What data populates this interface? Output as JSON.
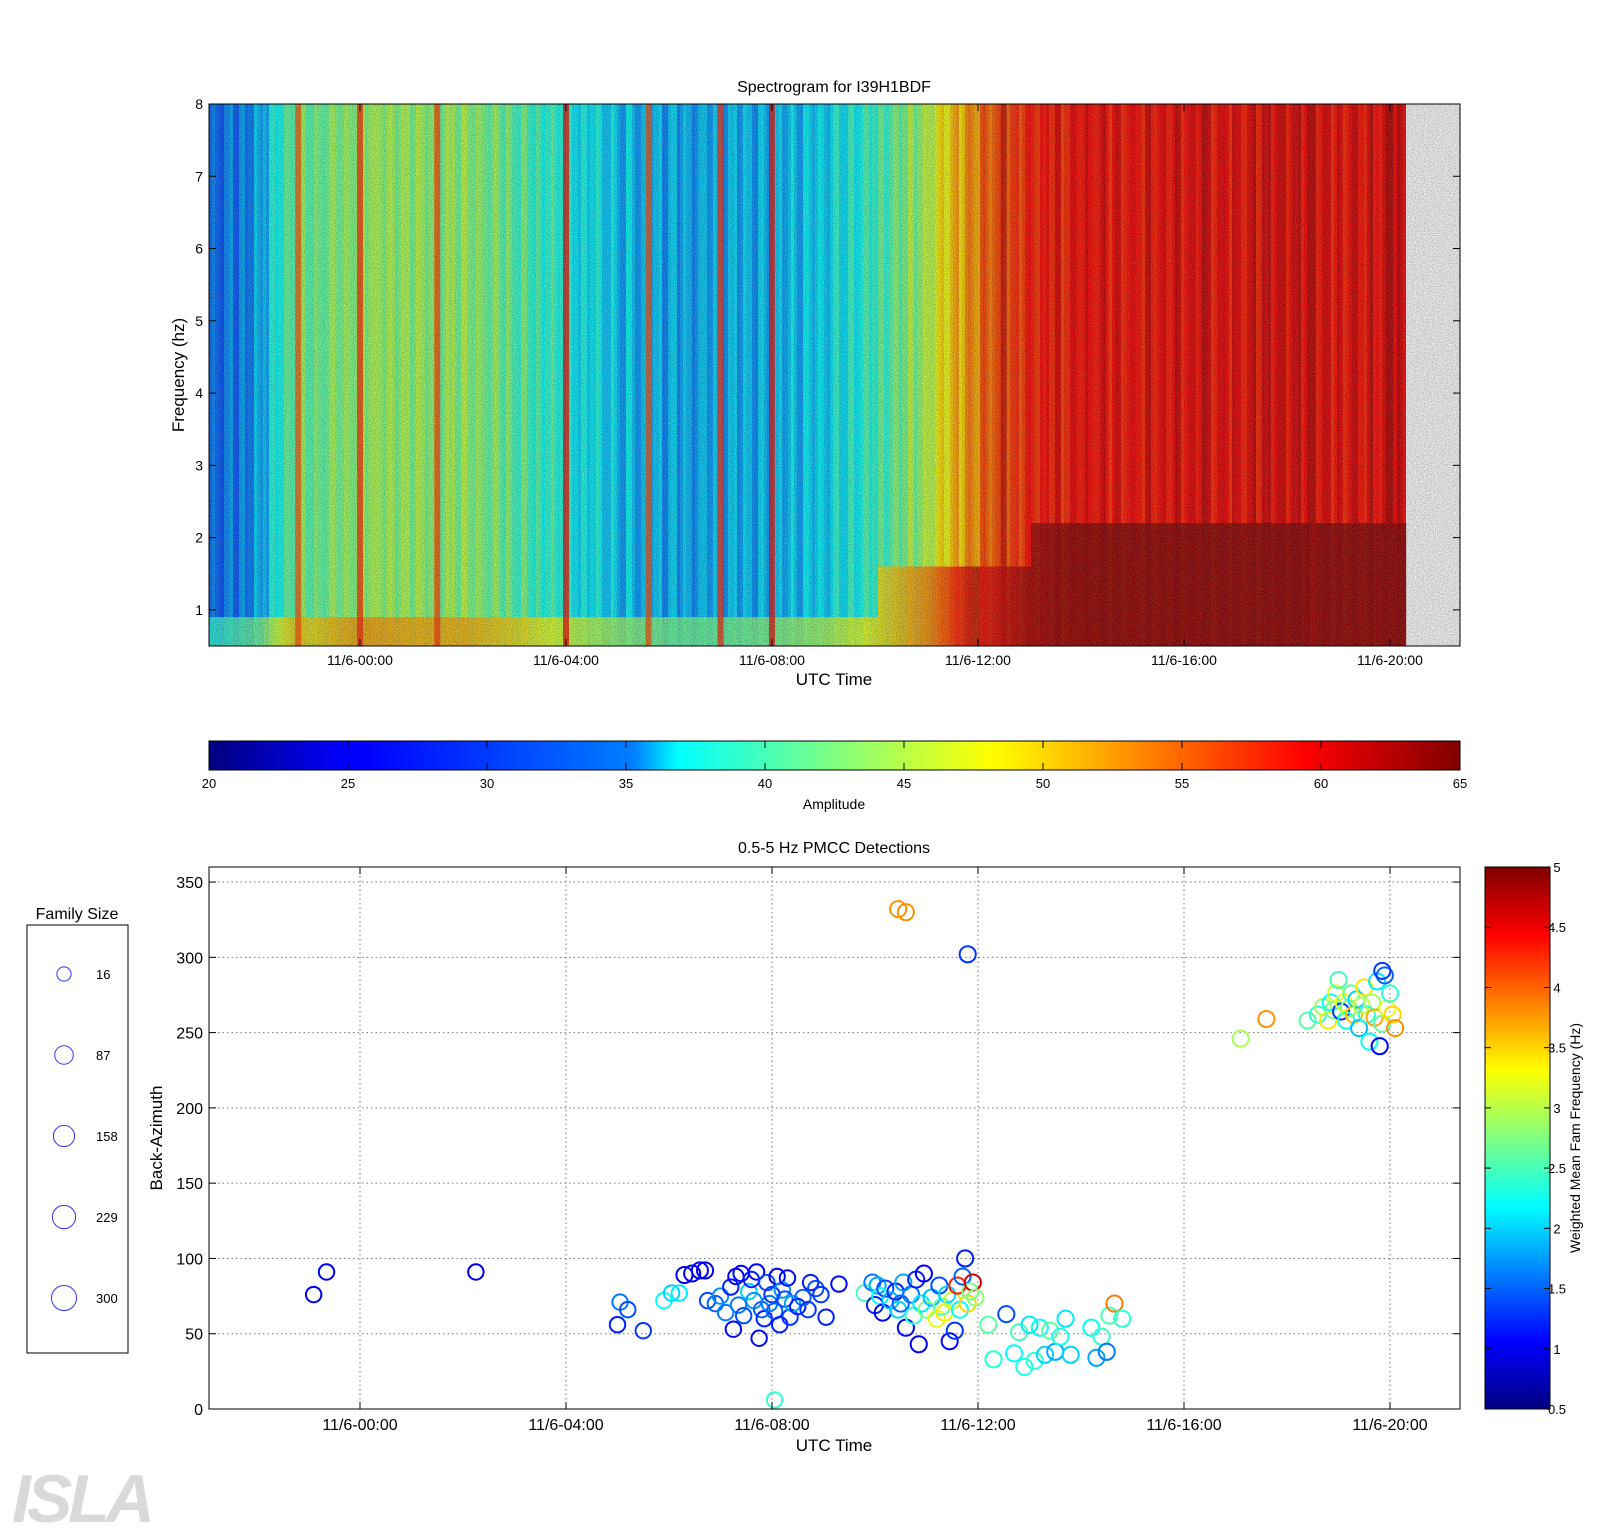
{
  "logo_text": "ISLA",
  "spectrogram": {
    "type": "heatmap",
    "title": "Spectrogram for I39H1BDF",
    "xlabel": "UTC Time",
    "ylabel": "Frequency (hz)",
    "x_ticks": [
      "11/6-00:00",
      "11/6-04:00",
      "11/6-08:00",
      "11/6-12:00",
      "11/6-16:00",
      "11/6-20:00"
    ],
    "y_ticks": [
      "1",
      "2",
      "3",
      "4",
      "5",
      "6",
      "7",
      "8"
    ],
    "ylim": [
      0.5,
      8
    ],
    "xlim_hours": [
      -3,
      21
    ]
  },
  "colorbar": {
    "label": "Amplitude",
    "ticks": [
      "20",
      "25",
      "30",
      "35",
      "40",
      "45",
      "50",
      "55",
      "60",
      "65"
    ],
    "range": [
      20,
      65
    ],
    "colormap": "jet"
  },
  "detections": {
    "title": "0.5-5 Hz PMCC Detections",
    "xlabel": "UTC Time",
    "ylabel": "Back-Azimuth",
    "x_ticks": [
      "11/6-00:00",
      "11/6-04:00",
      "11/6-08:00",
      "11/6-12:00",
      "11/6-16:00",
      "11/6-20:00"
    ],
    "y_ticks": [
      "0",
      "50",
      "100",
      "150",
      "200",
      "250",
      "300",
      "350"
    ],
    "colorbar_label": "Weighted Mean Fam Frequency (Hz)",
    "colorbar_ticks": [
      "0.5",
      "1",
      "1.5",
      "2",
      "2.5",
      "3",
      "3.5",
      "4",
      "4.5",
      "5"
    ],
    "grid": true
  },
  "legend": {
    "title": "Family Size",
    "items": [
      {
        "label": "16",
        "size": 16
      },
      {
        "label": "87",
        "size": 87
      },
      {
        "label": "158",
        "size": 158
      },
      {
        "label": "229",
        "size": 229
      },
      {
        "label": "300",
        "size": 300
      }
    ]
  },
  "chart_data": [
    {
      "type": "heatmap",
      "title": "Spectrogram for I39H1BDF",
      "xlabel": "UTC Time",
      "ylabel": "Frequency (hz)",
      "x_unit": "hours since 11/6-00:00 UTC",
      "xlim": [
        -3,
        21
      ],
      "ylim": [
        0.5,
        8
      ],
      "value_label": "Amplitude",
      "value_range": [
        20,
        65
      ],
      "time_profile": [
        [
          -3,
          29
        ],
        [
          -2,
          33
        ],
        [
          -1.5,
          40
        ],
        [
          -1.2,
          42
        ],
        [
          -1,
          41
        ],
        [
          0,
          44
        ],
        [
          1,
          43
        ],
        [
          2,
          43
        ],
        [
          3,
          41
        ],
        [
          4,
          38
        ],
        [
          5,
          35
        ],
        [
          6,
          33
        ],
        [
          7,
          33
        ],
        [
          8,
          34
        ],
        [
          9,
          36
        ],
        [
          10,
          40
        ],
        [
          11,
          45
        ],
        [
          12,
          54
        ],
        [
          13,
          58
        ],
        [
          14,
          59
        ],
        [
          16,
          60
        ],
        [
          18,
          60
        ],
        [
          20,
          60
        ]
      ],
      "striations": [
        [
          -1.2,
          56
        ],
        [
          0,
          58
        ],
        [
          1.5,
          57
        ],
        [
          4,
          60
        ],
        [
          5.6,
          56
        ],
        [
          7,
          58
        ],
        [
          8,
          60
        ],
        [
          12.5,
          62
        ],
        [
          18.5,
          63
        ],
        [
          20,
          64
        ]
      ]
    },
    {
      "type": "scatter",
      "title": "0.5-5 Hz PMCC Detections",
      "xlabel": "UTC Time",
      "ylabel": "Back-Azimuth",
      "x_unit": "hours since 11/6-00:00 UTC",
      "xlim": [
        -3,
        21
      ],
      "ylim": [
        0,
        360
      ],
      "color_label": "Weighted Mean Fam Frequency (Hz)",
      "color_range": [
        0.5,
        5
      ],
      "points": [
        [
          -0.9,
          76,
          1.0,
          30
        ],
        [
          -0.65,
          91,
          1.0,
          30
        ],
        [
          2.25,
          91,
          1.0,
          30
        ],
        [
          5.0,
          56,
          1.2,
          30
        ],
        [
          5.05,
          71,
          1.6,
          30
        ],
        [
          5.2,
          66,
          1.4,
          30
        ],
        [
          5.5,
          52,
          1.3,
          30
        ],
        [
          5.9,
          72,
          2.2,
          30
        ],
        [
          6.05,
          77,
          2.0,
          30
        ],
        [
          6.2,
          77,
          2.1,
          30
        ],
        [
          6.3,
          89,
          1.0,
          40
        ],
        [
          6.45,
          90,
          1.0,
          40
        ],
        [
          6.6,
          92,
          1.0,
          40
        ],
        [
          6.7,
          92,
          1.0,
          40
        ],
        [
          6.75,
          72,
          1.4,
          30
        ],
        [
          6.9,
          70,
          1.5,
          30
        ],
        [
          7.0,
          75,
          1.7,
          30
        ],
        [
          7.1,
          64,
          1.6,
          30
        ],
        [
          7.2,
          81,
          1.2,
          30
        ],
        [
          7.25,
          53,
          1.1,
          30
        ],
        [
          7.3,
          88,
          1.0,
          30
        ],
        [
          7.35,
          69,
          1.6,
          30
        ],
        [
          7.4,
          90,
          1.1,
          30
        ],
        [
          7.45,
          62,
          1.4,
          30
        ],
        [
          7.55,
          78,
          2.0,
          30
        ],
        [
          7.6,
          86,
          1.2,
          30
        ],
        [
          7.65,
          72,
          1.7,
          30
        ],
        [
          7.7,
          91,
          1.0,
          30
        ],
        [
          7.75,
          47,
          1.1,
          30
        ],
        [
          7.8,
          66,
          1.5,
          30
        ],
        [
          7.85,
          60,
          1.2,
          30
        ],
        [
          7.9,
          84,
          1.4,
          30
        ],
        [
          7.95,
          70,
          1.6,
          30
        ],
        [
          8.0,
          76,
          1.3,
          30
        ],
        [
          8.05,
          65,
          1.5,
          30
        ],
        [
          8.1,
          88,
          1.0,
          30
        ],
        [
          8.15,
          56,
          1.2,
          30
        ],
        [
          8.2,
          79,
          1.7,
          30
        ],
        [
          8.25,
          73,
          1.4,
          30
        ],
        [
          8.3,
          87,
          1.1,
          30
        ],
        [
          8.35,
          61,
          1.3,
          30
        ],
        [
          8.4,
          70,
          1.8,
          30
        ],
        [
          8.5,
          68,
          1.2,
          30
        ],
        [
          8.6,
          74,
          1.5,
          30
        ],
        [
          8.7,
          66,
          1.3,
          30
        ],
        [
          8.75,
          84,
          1.2,
          30
        ],
        [
          8.85,
          80,
          1.4,
          30
        ],
        [
          8.95,
          76,
          1.3,
          30
        ],
        [
          9.05,
          61,
          1.2,
          30
        ],
        [
          9.3,
          83,
          1.1,
          30
        ],
        [
          8.05,
          6,
          2.4,
          30
        ],
        [
          9.8,
          77,
          2.5,
          40
        ],
        [
          9.95,
          84,
          1.6,
          40
        ],
        [
          10.0,
          69,
          1.2,
          40
        ],
        [
          10.05,
          82,
          1.8,
          40
        ],
        [
          10.1,
          75,
          2.2,
          40
        ],
        [
          10.15,
          64,
          1.0,
          40
        ],
        [
          10.2,
          80,
          1.4,
          40
        ],
        [
          10.3,
          72,
          1.9,
          40
        ],
        [
          10.4,
          78,
          1.2,
          40
        ],
        [
          10.45,
          66,
          2.0,
          40
        ],
        [
          10.5,
          70,
          1.5,
          40
        ],
        [
          10.55,
          84,
          1.8,
          40
        ],
        [
          10.6,
          54,
          1.1,
          40
        ],
        [
          10.7,
          76,
          1.6,
          40
        ],
        [
          10.75,
          62,
          2.4,
          40
        ],
        [
          10.8,
          86,
          1.2,
          40
        ],
        [
          10.85,
          43,
          1.0,
          40
        ],
        [
          10.9,
          70,
          2.1,
          40
        ],
        [
          10.95,
          90,
          1.0,
          40
        ],
        [
          11.0,
          66,
          2.8,
          40
        ],
        [
          11.1,
          74,
          1.9,
          40
        ],
        [
          11.2,
          60,
          3.2,
          40
        ],
        [
          11.25,
          82,
          1.4,
          40
        ],
        [
          11.3,
          68,
          2.6,
          40
        ],
        [
          11.35,
          64,
          3.4,
          40
        ],
        [
          11.4,
          76,
          2.0,
          40
        ],
        [
          11.45,
          45,
          1.1,
          40
        ],
        [
          11.5,
          72,
          3.0,
          40
        ],
        [
          11.55,
          52,
          1.3,
          40
        ],
        [
          11.6,
          82,
          4.3,
          40
        ],
        [
          11.65,
          66,
          2.2,
          40
        ],
        [
          11.7,
          88,
          1.5,
          40
        ],
        [
          11.75,
          100,
          1.2,
          40
        ],
        [
          11.8,
          70,
          3.5,
          40
        ],
        [
          11.85,
          78,
          2.7,
          40
        ],
        [
          11.9,
          84,
          4.6,
          40
        ],
        [
          11.95,
          74,
          2.8,
          40
        ],
        [
          10.45,
          332,
          3.8,
          40
        ],
        [
          10.6,
          330,
          3.8,
          40
        ],
        [
          11.8,
          302,
          1.3,
          40
        ],
        [
          12.2,
          56,
          2.6,
          40
        ],
        [
          12.3,
          33,
          2.4,
          40
        ],
        [
          12.55,
          63,
          1.4,
          40
        ],
        [
          12.7,
          37,
          2.2,
          40
        ],
        [
          12.8,
          51,
          2.5,
          40
        ],
        [
          12.9,
          28,
          2.3,
          40
        ],
        [
          13.0,
          56,
          2.1,
          40
        ],
        [
          13.1,
          32,
          2.4,
          40
        ],
        [
          13.2,
          54,
          2.2,
          40
        ],
        [
          13.3,
          36,
          2.0,
          40
        ],
        [
          13.4,
          52,
          2.6,
          40
        ],
        [
          13.5,
          38,
          1.8,
          40
        ],
        [
          13.6,
          48,
          2.3,
          40
        ],
        [
          13.7,
          60,
          2.1,
          40
        ],
        [
          13.8,
          36,
          2.0,
          40
        ],
        [
          14.2,
          54,
          2.2,
          40
        ],
        [
          14.3,
          34,
          1.8,
          40
        ],
        [
          14.4,
          48,
          2.4,
          40
        ],
        [
          14.5,
          38,
          1.6,
          40
        ],
        [
          14.55,
          62,
          2.5,
          40
        ],
        [
          14.65,
          70,
          3.9,
          40
        ],
        [
          14.8,
          60,
          2.4,
          40
        ],
        [
          17.1,
          246,
          2.9,
          40
        ],
        [
          17.6,
          259,
          3.8,
          40
        ],
        [
          18.4,
          258,
          2.6,
          40
        ],
        [
          18.6,
          262,
          2.4,
          40
        ],
        [
          18.7,
          267,
          2.9,
          40
        ],
        [
          18.8,
          258,
          3.4,
          40
        ],
        [
          18.85,
          270,
          2.2,
          40
        ],
        [
          18.9,
          265,
          2.7,
          40
        ],
        [
          18.95,
          276,
          3.1,
          40
        ],
        [
          19.0,
          285,
          2.5,
          40
        ],
        [
          19.05,
          264,
          1.3,
          40
        ],
        [
          19.1,
          270,
          3.3,
          40
        ],
        [
          19.15,
          258,
          2.3,
          40
        ],
        [
          19.2,
          266,
          2.8,
          40
        ],
        [
          19.25,
          276,
          2.6,
          40
        ],
        [
          19.3,
          262,
          3.6,
          40
        ],
        [
          19.35,
          272,
          2.0,
          40
        ],
        [
          19.4,
          253,
          1.9,
          40
        ],
        [
          19.45,
          268,
          3.0,
          40
        ],
        [
          19.5,
          280,
          3.4,
          40
        ],
        [
          19.55,
          262,
          2.4,
          40
        ],
        [
          19.6,
          244,
          2.2,
          40
        ],
        [
          19.65,
          270,
          2.9,
          40
        ],
        [
          19.7,
          260,
          3.7,
          40
        ],
        [
          19.75,
          284,
          2.1,
          40
        ],
        [
          19.8,
          241,
          1.1,
          40
        ],
        [
          19.85,
          256,
          2.6,
          40
        ],
        [
          19.9,
          288,
          1.5,
          40
        ],
        [
          19.95,
          266,
          3.2,
          40
        ],
        [
          20.0,
          276,
          2.4,
          40
        ],
        [
          20.05,
          262,
          3.5,
          40
        ],
        [
          20.1,
          253,
          3.8,
          40
        ],
        [
          19.85,
          291,
          1.3,
          40
        ]
      ]
    }
  ]
}
